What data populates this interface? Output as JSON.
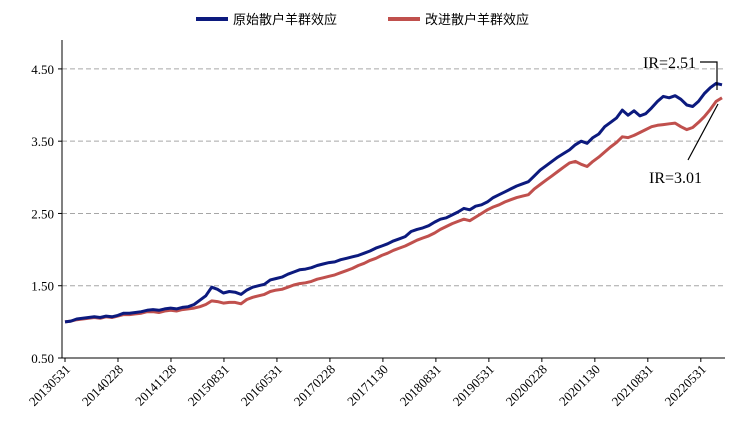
{
  "chart_data": {
    "type": "line",
    "title": "",
    "xlabel": "",
    "ylabel": "",
    "ylim": [
      0.5,
      4.9
    ],
    "yticks": [
      0.5,
      1.5,
      2.5,
      3.5,
      4.5
    ],
    "ytick_labels": [
      "0.50",
      "1.50",
      "2.50",
      "3.50",
      "4.50"
    ],
    "xtick_labels": [
      "20130531",
      "20140228",
      "20141128",
      "20150831",
      "20160531",
      "20170228",
      "20171130",
      "20180831",
      "20190531",
      "20200228",
      "20201130",
      "20210831",
      "20220531"
    ],
    "grid": "horizontal-dashed",
    "legend": "top-center",
    "series": [
      {
        "name": "原始散户羊群效应",
        "color": "#0c1a7e",
        "values": [
          1.0,
          1.01,
          1.04,
          1.05,
          1.06,
          1.07,
          1.06,
          1.08,
          1.07,
          1.09,
          1.12,
          1.12,
          1.13,
          1.14,
          1.16,
          1.17,
          1.16,
          1.18,
          1.19,
          1.18,
          1.2,
          1.21,
          1.24,
          1.3,
          1.36,
          1.48,
          1.45,
          1.4,
          1.42,
          1.41,
          1.38,
          1.44,
          1.48,
          1.5,
          1.52,
          1.58,
          1.6,
          1.62,
          1.66,
          1.69,
          1.72,
          1.73,
          1.75,
          1.78,
          1.8,
          1.82,
          1.83,
          1.86,
          1.88,
          1.9,
          1.92,
          1.95,
          1.98,
          2.02,
          2.05,
          2.08,
          2.12,
          2.15,
          2.18,
          2.25,
          2.28,
          2.3,
          2.33,
          2.38,
          2.42,
          2.44,
          2.48,
          2.52,
          2.57,
          2.55,
          2.6,
          2.62,
          2.66,
          2.72,
          2.76,
          2.8,
          2.84,
          2.88,
          2.91,
          2.94,
          3.02,
          3.1,
          3.16,
          3.22,
          3.28,
          3.33,
          3.38,
          3.45,
          3.5,
          3.47,
          3.55,
          3.6,
          3.7,
          3.76,
          3.82,
          3.93,
          3.86,
          3.92,
          3.85,
          3.88,
          3.96,
          4.05,
          4.12,
          4.1,
          4.13,
          4.08,
          4.0,
          3.98,
          4.05,
          4.16,
          4.24,
          4.3,
          4.28
        ]
      },
      {
        "name": "改进散户羊群效应",
        "color": "#c0504d",
        "values": [
          1.0,
          1.01,
          1.03,
          1.04,
          1.05,
          1.06,
          1.05,
          1.07,
          1.06,
          1.08,
          1.1,
          1.1,
          1.11,
          1.12,
          1.14,
          1.14,
          1.13,
          1.15,
          1.16,
          1.15,
          1.17,
          1.18,
          1.19,
          1.21,
          1.24,
          1.29,
          1.28,
          1.26,
          1.27,
          1.27,
          1.25,
          1.31,
          1.34,
          1.36,
          1.38,
          1.42,
          1.44,
          1.45,
          1.48,
          1.51,
          1.53,
          1.54,
          1.56,
          1.59,
          1.61,
          1.63,
          1.65,
          1.68,
          1.71,
          1.74,
          1.78,
          1.81,
          1.85,
          1.88,
          1.92,
          1.95,
          1.99,
          2.02,
          2.05,
          2.09,
          2.13,
          2.16,
          2.19,
          2.23,
          2.28,
          2.32,
          2.36,
          2.39,
          2.42,
          2.4,
          2.45,
          2.5,
          2.55,
          2.59,
          2.62,
          2.66,
          2.69,
          2.72,
          2.74,
          2.76,
          2.84,
          2.9,
          2.96,
          3.02,
          3.08,
          3.14,
          3.2,
          3.22,
          3.18,
          3.15,
          3.22,
          3.28,
          3.35,
          3.42,
          3.48,
          3.56,
          3.55,
          3.58,
          3.62,
          3.66,
          3.7,
          3.72,
          3.73,
          3.74,
          3.75,
          3.7,
          3.66,
          3.69,
          3.76,
          3.84,
          3.94,
          4.05,
          4.1
        ]
      }
    ],
    "annotations": [
      {
        "text": "IR=2.51",
        "series": 0
      },
      {
        "text": "IR=3.01",
        "series": 1
      }
    ]
  }
}
